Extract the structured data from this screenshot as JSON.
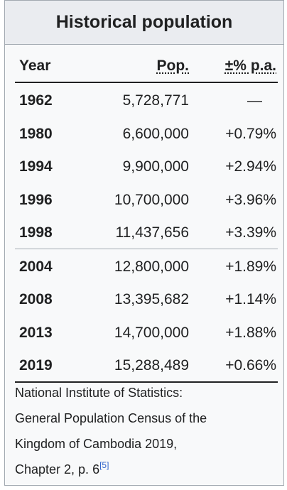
{
  "caption": "Historical population",
  "headers": {
    "year": "Year",
    "population": "Pop.",
    "change": "±% p.a."
  },
  "rows": [
    {
      "year": "1962",
      "population": "5,728,771",
      "change": "—"
    },
    {
      "year": "1980",
      "population": "6,600,000",
      "change": "+0.79%"
    },
    {
      "year": "1994",
      "population": "9,900,000",
      "change": "+2.94%"
    },
    {
      "year": "1996",
      "population": "10,700,000",
      "change": "+3.96%"
    },
    {
      "year": "1998",
      "population": "11,437,656",
      "change": "+3.39%"
    },
    {
      "year": "2004",
      "population": "12,800,000",
      "change": "+1.89%"
    },
    {
      "year": "2008",
      "population": "13,395,682",
      "change": "+1.14%"
    },
    {
      "year": "2013",
      "population": "14,700,000",
      "change": "+1.88%"
    },
    {
      "year": "2019",
      "population": "15,288,489",
      "change": "+0.66%"
    }
  ],
  "source": {
    "line1": "National Institute of Statistics:",
    "line2": "General Population Census of the",
    "line3": "Kingdom of Cambodia 2019,",
    "line4": "Chapter 2, p. 6",
    "ref": "[5]"
  }
}
